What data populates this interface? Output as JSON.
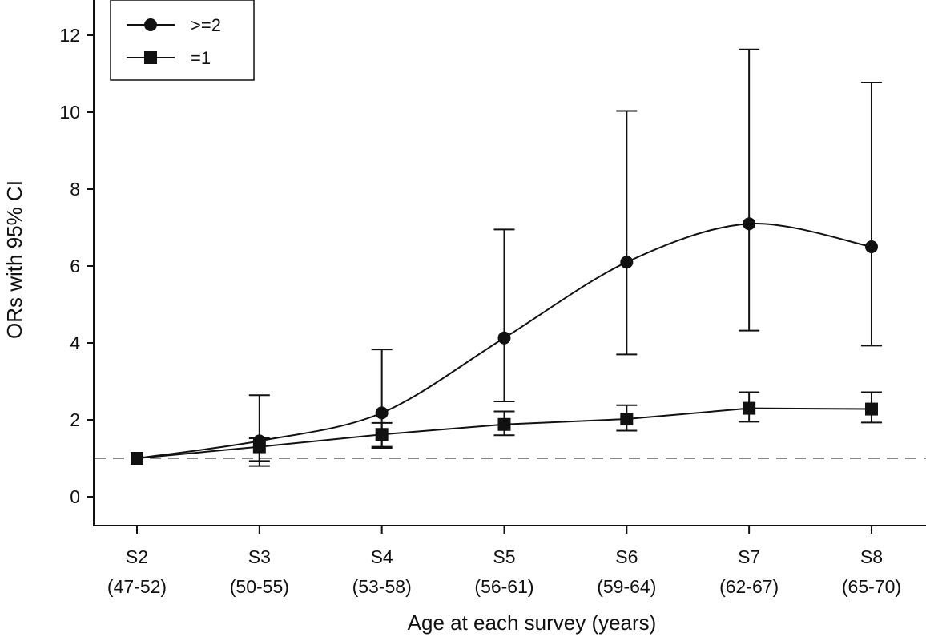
{
  "chart_data": {
    "type": "line",
    "xlabel": "Age at each survey (years)",
    "ylabel": "ORs with 95% CI",
    "ylim": [
      -0.75,
      12.75
    ],
    "yticks": [
      0,
      2,
      4,
      6,
      8,
      10,
      12
    ],
    "categories": [
      {
        "survey": "S2",
        "age": "(47-52)"
      },
      {
        "survey": "S3",
        "age": "(50-55)"
      },
      {
        "survey": "S4",
        "age": "(53-58)"
      },
      {
        "survey": "S5",
        "age": "(56-61)"
      },
      {
        "survey": "S6",
        "age": "(59-64)"
      },
      {
        "survey": "S7",
        "age": "(62-67)"
      },
      {
        "survey": "S8",
        "age": "(65-70)"
      }
    ],
    "reference_line": {
      "y": 1,
      "style": "dashed",
      "color": "#888888"
    },
    "series": [
      {
        "name": ">=2",
        "marker": "circle",
        "values": [
          1.0,
          1.45,
          2.18,
          4.13,
          6.1,
          7.1,
          6.5
        ],
        "ci_low": [
          1.0,
          0.93,
          1.27,
          2.48,
          3.7,
          4.32,
          3.93
        ],
        "ci_high": [
          1.0,
          2.64,
          3.83,
          6.95,
          10.03,
          11.63,
          10.77
        ]
      },
      {
        "name": "=1",
        "marker": "square",
        "values": [
          1.0,
          1.3,
          1.62,
          1.88,
          2.02,
          2.3,
          2.28
        ],
        "ci_low": [
          1.0,
          0.8,
          1.3,
          1.6,
          1.72,
          1.95,
          1.93
        ],
        "ci_high": [
          1.0,
          1.52,
          1.92,
          2.22,
          2.38,
          2.72,
          2.72
        ]
      }
    ],
    "legend": {
      "position": "top-left"
    },
    "grid": false,
    "colors": {
      "line": "#111111",
      "reference": "#888888"
    }
  }
}
